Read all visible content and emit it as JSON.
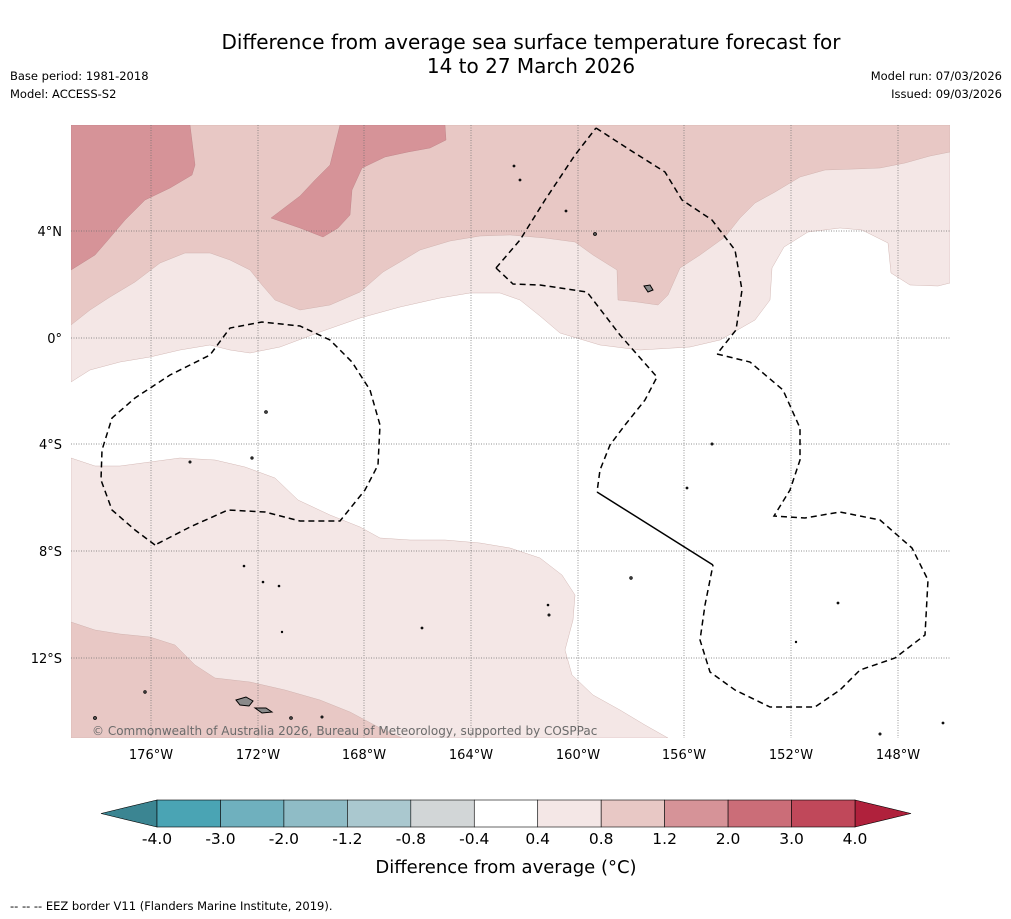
{
  "title_line1": "Difference from average sea surface temperature forecast for",
  "title_line2": "14 to 27 March 2026",
  "base_period": "Base period: 1981-2018",
  "model": "Model: ACCESS-S2",
  "model_run": "Model run: 07/03/2026",
  "issued": "Issued: 09/03/2026",
  "copyright": "© Commonwealth of Australia 2026, Bureau of Meteorology, supported by COSPPac",
  "lat_labels": [
    "4°N",
    "0°",
    "4°S",
    "8°S",
    "12°S"
  ],
  "lon_labels": [
    "176°W",
    "172°W",
    "168°W",
    "164°W",
    "160°W",
    "156°W",
    "152°W",
    "148°W"
  ],
  "colorbar": {
    "title": "Difference from average (°C)",
    "ticks": [
      "-4.0",
      "-3.0",
      "-2.0",
      "-1.2",
      "-0.8",
      "-0.4",
      "0.4",
      "0.8",
      "1.2",
      "2.0",
      "3.0",
      "4.0"
    ],
    "colors": [
      "#4aa4b4",
      "#6fb0be",
      "#8fbcc6",
      "#aac8cf",
      "#d2d6d7",
      "#ffffff",
      "#f4e7e6",
      "#e8c8c5",
      "#d69398",
      "#cb6d78",
      "#c0485a"
    ],
    "under_color": "#3b8592",
    "over_color": "#b0213c"
  },
  "colors": {
    "band_0_4": "#f4e7e6",
    "band_0_8": "#e8c8c5",
    "band_1_2": "#d69398",
    "island_fill": "#8a8a8a"
  },
  "footnote": "-- -- -- EEZ border V11 (Flanders Marine Institute, 2019)."
}
